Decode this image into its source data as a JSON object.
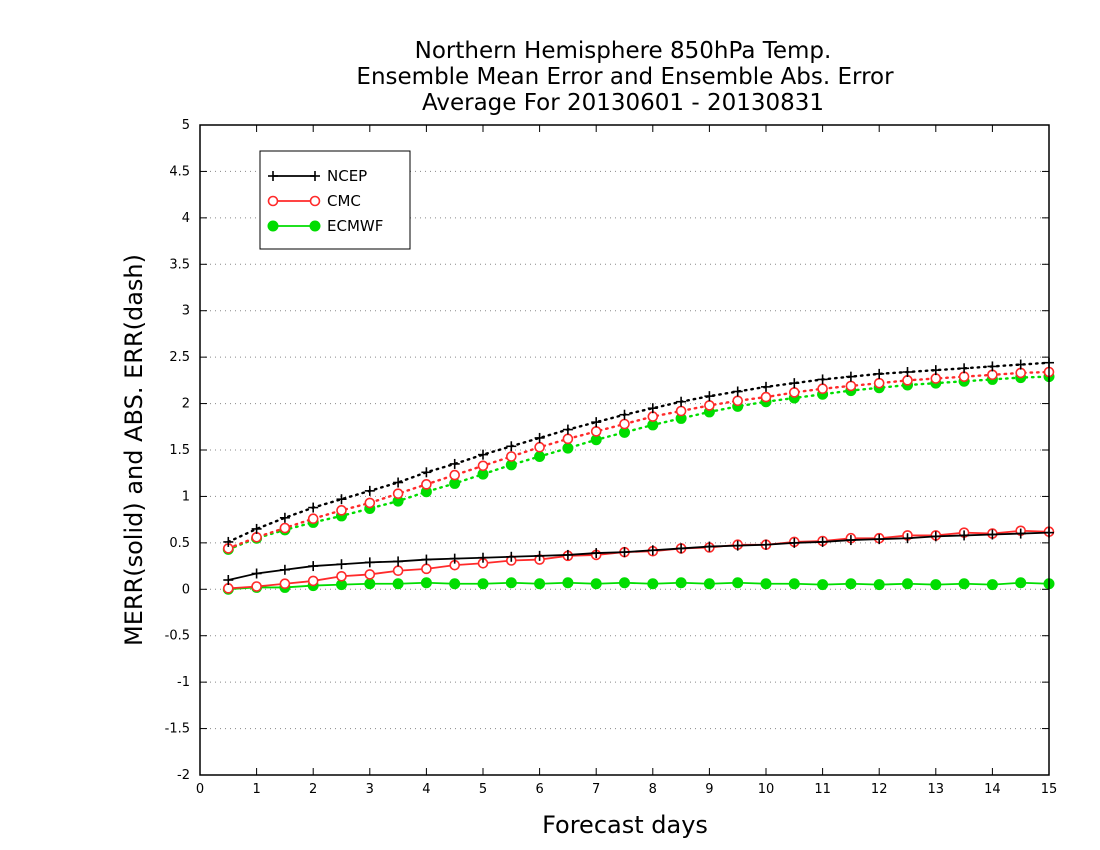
{
  "chart_data": {
    "type": "line",
    "title_lines": [
      "Northern Hemisphere 850hPa Temp.",
      "Ensemble Mean Error and Ensemble Abs. Error",
      "Average For 20130601 - 20130831"
    ],
    "xlabel": "Forecast days",
    "ylabel": "MERR(solid) and ABS. ERR(dash)",
    "xlim": [
      0,
      15
    ],
    "ylim": [
      -2,
      5
    ],
    "xticks": [
      "0",
      "1",
      "2",
      "3",
      "4",
      "5",
      "6",
      "7",
      "8",
      "9",
      "10",
      "11",
      "12",
      "13",
      "14",
      "15"
    ],
    "yticks": [
      "5",
      "4.5",
      "4",
      "3.5",
      "3",
      "2.5",
      "2",
      "1.5",
      "1",
      "0.5",
      "0",
      "-0.5",
      "-1",
      "-1.5",
      "-2"
    ],
    "grid": "horizontal dotted",
    "legend_position": "top-left",
    "x": [
      0.5,
      1,
      1.5,
      2,
      2.5,
      3,
      3.5,
      4,
      4.5,
      5,
      5.5,
      6,
      6.5,
      7,
      7.5,
      8,
      8.5,
      9,
      9.5,
      10,
      10.5,
      11,
      11.5,
      12,
      12.5,
      13,
      13.5,
      14,
      14.5,
      15
    ],
    "series": [
      {
        "name": "NCEP",
        "color": "#000000",
        "marker": "plus",
        "mean_error": [
          0.1,
          0.17,
          0.21,
          0.25,
          0.27,
          0.29,
          0.3,
          0.32,
          0.33,
          0.34,
          0.35,
          0.36,
          0.37,
          0.39,
          0.4,
          0.42,
          0.44,
          0.46,
          0.47,
          0.48,
          0.5,
          0.51,
          0.53,
          0.54,
          0.55,
          0.57,
          0.58,
          0.59,
          0.6,
          0.61
        ],
        "abs_error": [
          0.51,
          0.65,
          0.77,
          0.88,
          0.97,
          1.06,
          1.15,
          1.26,
          1.35,
          1.45,
          1.54,
          1.63,
          1.72,
          1.8,
          1.88,
          1.95,
          2.02,
          2.08,
          2.13,
          2.18,
          2.22,
          2.26,
          2.29,
          2.32,
          2.34,
          2.36,
          2.38,
          2.4,
          2.42,
          2.44
        ]
      },
      {
        "name": "CMC",
        "color": "#ff2a2a",
        "marker": "open-circle",
        "mean_error": [
          0.01,
          0.03,
          0.06,
          0.09,
          0.14,
          0.16,
          0.2,
          0.22,
          0.26,
          0.28,
          0.31,
          0.32,
          0.36,
          0.37,
          0.4,
          0.41,
          0.44,
          0.45,
          0.48,
          0.48,
          0.51,
          0.52,
          0.55,
          0.55,
          0.58,
          0.58,
          0.61,
          0.6,
          0.63,
          0.62
        ],
        "abs_error": [
          0.44,
          0.56,
          0.66,
          0.76,
          0.85,
          0.93,
          1.03,
          1.13,
          1.23,
          1.33,
          1.43,
          1.53,
          1.62,
          1.7,
          1.78,
          1.86,
          1.92,
          1.98,
          2.03,
          2.07,
          2.12,
          2.16,
          2.19,
          2.22,
          2.25,
          2.27,
          2.29,
          2.31,
          2.33,
          2.34
        ]
      },
      {
        "name": "ECMWF",
        "color": "#00dd00",
        "marker": "filled-circle",
        "mean_error": [
          0.0,
          0.02,
          0.02,
          0.04,
          0.05,
          0.06,
          0.06,
          0.07,
          0.06,
          0.06,
          0.07,
          0.06,
          0.07,
          0.06,
          0.07,
          0.06,
          0.07,
          0.06,
          0.07,
          0.06,
          0.06,
          0.05,
          0.06,
          0.05,
          0.06,
          0.05,
          0.06,
          0.05,
          0.07,
          0.06
        ],
        "abs_error": [
          0.43,
          0.55,
          0.64,
          0.72,
          0.79,
          0.87,
          0.95,
          1.05,
          1.14,
          1.24,
          1.34,
          1.43,
          1.52,
          1.61,
          1.69,
          1.77,
          1.84,
          1.91,
          1.97,
          2.02,
          2.06,
          2.1,
          2.14,
          2.17,
          2.2,
          2.22,
          2.24,
          2.26,
          2.28,
          2.29
        ]
      }
    ]
  }
}
